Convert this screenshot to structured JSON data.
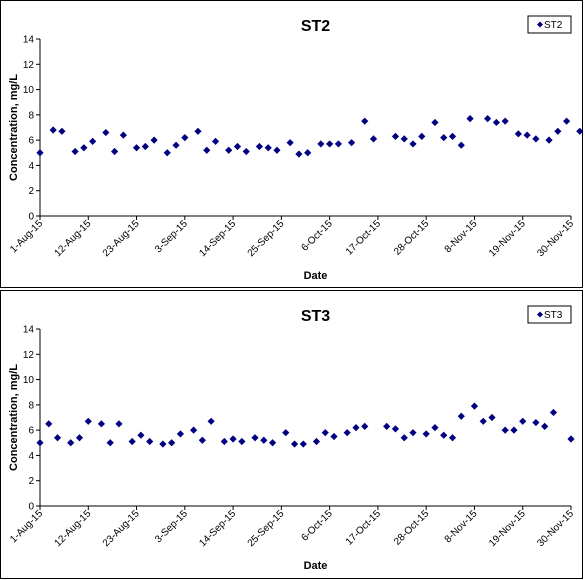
{
  "chart_data": [
    {
      "type": "scatter",
      "title": "ST2",
      "xlabel": "Date",
      "ylabel": "Concentration, mg/L",
      "ylim": [
        0,
        14
      ],
      "yticks": [
        "0",
        "2",
        "4",
        "6",
        "8",
        "10",
        "12",
        "14"
      ],
      "xlim": [
        "2015-08-01",
        "2015-11-30"
      ],
      "xticks": [
        "1-Aug-15",
        "12-Aug-15",
        "23-Aug-15",
        "3-Sep-15",
        "14-Sep-15",
        "25-Sep-15",
        "6-Oct-15",
        "17-Oct-15",
        "28-Oct-15",
        "8-Nov-15",
        "19-Nov-15",
        "30-Nov-15"
      ],
      "xtick_dates": [
        "2015-08-01",
        "2015-08-12",
        "2015-08-23",
        "2015-09-03",
        "2015-09-14",
        "2015-09-25",
        "2015-10-06",
        "2015-10-17",
        "2015-10-28",
        "2015-11-08",
        "2015-11-19",
        "2015-11-30"
      ],
      "legend": {
        "position": "top-right"
      },
      "grid": false,
      "series": [
        {
          "name": "ST2",
          "color": "#000080",
          "marker": "diamond",
          "points": [
            [
              "2015-08-01",
              5.0
            ],
            [
              "2015-08-04",
              6.8
            ],
            [
              "2015-08-06",
              6.7
            ],
            [
              "2015-08-09",
              5.1
            ],
            [
              "2015-08-11",
              5.4
            ],
            [
              "2015-08-13",
              5.9
            ],
            [
              "2015-08-16",
              6.6
            ],
            [
              "2015-08-18",
              5.1
            ],
            [
              "2015-08-20",
              6.4
            ],
            [
              "2015-08-23",
              5.4
            ],
            [
              "2015-08-25",
              5.5
            ],
            [
              "2015-08-27",
              6.0
            ],
            [
              "2015-08-30",
              5.0
            ],
            [
              "2015-09-01",
              5.6
            ],
            [
              "2015-09-03",
              6.2
            ],
            [
              "2015-09-06",
              6.7
            ],
            [
              "2015-09-08",
              5.2
            ],
            [
              "2015-09-10",
              5.9
            ],
            [
              "2015-09-13",
              5.2
            ],
            [
              "2015-09-15",
              5.5
            ],
            [
              "2015-09-17",
              5.1
            ],
            [
              "2015-09-20",
              5.5
            ],
            [
              "2015-09-22",
              5.4
            ],
            [
              "2015-09-24",
              5.2
            ],
            [
              "2015-09-27",
              5.8
            ],
            [
              "2015-09-29",
              4.9
            ],
            [
              "2015-10-01",
              5.0
            ],
            [
              "2015-10-04",
              5.7
            ],
            [
              "2015-10-06",
              5.7
            ],
            [
              "2015-10-08",
              5.7
            ],
            [
              "2015-10-11",
              5.8
            ],
            [
              "2015-10-14",
              7.5
            ],
            [
              "2015-10-16",
              6.1
            ],
            [
              "2015-10-21",
              6.3
            ],
            [
              "2015-10-23",
              6.1
            ],
            [
              "2015-10-25",
              5.7
            ],
            [
              "2015-10-27",
              6.3
            ],
            [
              "2015-10-30",
              7.4
            ],
            [
              "2015-11-01",
              6.2
            ],
            [
              "2015-11-03",
              6.3
            ],
            [
              "2015-11-05",
              5.6
            ],
            [
              "2015-11-07",
              7.7
            ],
            [
              "2015-11-11",
              7.7
            ],
            [
              "2015-11-13",
              7.4
            ],
            [
              "2015-11-15",
              7.5
            ],
            [
              "2015-11-18",
              6.5
            ],
            [
              "2015-11-20",
              6.4
            ],
            [
              "2015-11-22",
              6.1
            ],
            [
              "2015-11-25",
              6.0
            ],
            [
              "2015-11-27",
              6.7
            ],
            [
              "2015-11-29",
              7.5
            ],
            [
              "2015-12-02",
              6.7
            ]
          ]
        }
      ]
    },
    {
      "type": "scatter",
      "title": "ST3",
      "xlabel": "Date",
      "ylabel": "Concentration, mg/L",
      "ylim": [
        0,
        14
      ],
      "yticks": [
        "0",
        "2",
        "4",
        "6",
        "8",
        "10",
        "12",
        "14"
      ],
      "xlim": [
        "2015-08-01",
        "2015-11-30"
      ],
      "xticks": [
        "1-Aug-15",
        "12-Aug-15",
        "23-Aug-15",
        "3-Sep-15",
        "14-Sep-15",
        "25-Sep-15",
        "6-Oct-15",
        "17-Oct-15",
        "28-Oct-15",
        "8-Nov-15",
        "19-Nov-15",
        "30-Nov-15"
      ],
      "xtick_dates": [
        "2015-08-01",
        "2015-08-12",
        "2015-08-23",
        "2015-09-03",
        "2015-09-14",
        "2015-09-25",
        "2015-10-06",
        "2015-10-17",
        "2015-10-28",
        "2015-11-08",
        "2015-11-19",
        "2015-11-30"
      ],
      "legend": {
        "position": "top-right"
      },
      "grid": false,
      "series": [
        {
          "name": "ST3",
          "color": "#000080",
          "marker": "diamond",
          "points": [
            [
              "2015-08-01",
              5.0
            ],
            [
              "2015-08-03",
              6.5
            ],
            [
              "2015-08-05",
              5.4
            ],
            [
              "2015-08-08",
              5.0
            ],
            [
              "2015-08-10",
              5.4
            ],
            [
              "2015-08-12",
              6.7
            ],
            [
              "2015-08-15",
              6.5
            ],
            [
              "2015-08-17",
              5.0
            ],
            [
              "2015-08-19",
              6.5
            ],
            [
              "2015-08-22",
              5.1
            ],
            [
              "2015-08-24",
              5.6
            ],
            [
              "2015-08-26",
              5.1
            ],
            [
              "2015-08-29",
              4.9
            ],
            [
              "2015-08-31",
              5.0
            ],
            [
              "2015-09-02",
              5.7
            ],
            [
              "2015-09-05",
              6.0
            ],
            [
              "2015-09-07",
              5.2
            ],
            [
              "2015-09-09",
              6.7
            ],
            [
              "2015-09-12",
              5.1
            ],
            [
              "2015-09-14",
              5.3
            ],
            [
              "2015-09-16",
              5.1
            ],
            [
              "2015-09-19",
              5.4
            ],
            [
              "2015-09-21",
              5.2
            ],
            [
              "2015-09-23",
              5.0
            ],
            [
              "2015-09-26",
              5.8
            ],
            [
              "2015-09-28",
              4.9
            ],
            [
              "2015-09-30",
              4.9
            ],
            [
              "2015-10-03",
              5.1
            ],
            [
              "2015-10-05",
              5.8
            ],
            [
              "2015-10-07",
              5.5
            ],
            [
              "2015-10-10",
              5.8
            ],
            [
              "2015-10-12",
              6.2
            ],
            [
              "2015-10-14",
              6.3
            ],
            [
              "2015-10-19",
              6.3
            ],
            [
              "2015-10-21",
              6.1
            ],
            [
              "2015-10-23",
              5.4
            ],
            [
              "2015-10-25",
              5.8
            ],
            [
              "2015-10-28",
              5.7
            ],
            [
              "2015-10-30",
              6.2
            ],
            [
              "2015-11-01",
              5.6
            ],
            [
              "2015-11-03",
              5.4
            ],
            [
              "2015-11-05",
              7.1
            ],
            [
              "2015-11-08",
              7.9
            ],
            [
              "2015-11-10",
              6.7
            ],
            [
              "2015-11-12",
              7.0
            ],
            [
              "2015-11-15",
              6.0
            ],
            [
              "2015-11-17",
              6.0
            ],
            [
              "2015-11-19",
              6.7
            ],
            [
              "2015-11-22",
              6.6
            ],
            [
              "2015-11-24",
              6.3
            ],
            [
              "2015-11-26",
              7.4
            ],
            [
              "2015-11-30",
              5.3
            ]
          ]
        }
      ]
    }
  ]
}
